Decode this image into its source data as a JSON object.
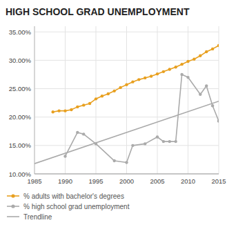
{
  "chart_data": {
    "type": "line",
    "title": "HIGH SCHOOL GRAD UNEMPLOYMENT",
    "series": [
      {
        "name": "% adults with bachelor's degrees",
        "color": "#e8a020",
        "marker": "circle",
        "x": [
          1988,
          1989,
          1990,
          1991,
          1992,
          1993,
          1994,
          1995,
          1996,
          1997,
          1998,
          1999,
          2000,
          2001,
          2002,
          2003,
          2004,
          2005,
          2006,
          2007,
          2008,
          2009,
          2010,
          2011,
          2012,
          2013,
          2014,
          2015
        ],
        "values": [
          0.209,
          0.211,
          0.211,
          0.213,
          0.218,
          0.221,
          0.224,
          0.232,
          0.237,
          0.241,
          0.246,
          0.252,
          0.257,
          0.262,
          0.266,
          0.269,
          0.272,
          0.276,
          0.28,
          0.284,
          0.288,
          0.293,
          0.298,
          0.302,
          0.308,
          0.315,
          0.32,
          0.326
        ]
      },
      {
        "name": "% high school grad unemployment",
        "color": "#aaaaaa",
        "marker": "circle",
        "x": [
          1990,
          1992,
          1993,
          1995,
          1998,
          2000,
          2001,
          2003,
          2005,
          2006,
          2007,
          2008,
          2009,
          2010,
          2012,
          2013,
          2014,
          2015
        ],
        "values": [
          0.131,
          0.173,
          0.17,
          0.153,
          0.123,
          0.12,
          0.15,
          0.153,
          0.165,
          0.157,
          0.157,
          0.157,
          0.275,
          0.27,
          0.24,
          0.255,
          0.22,
          0.193
        ]
      },
      {
        "name": "Trendline",
        "color": "#aaaaaa",
        "x": [
          1985,
          2015
        ],
        "values": [
          0.118,
          0.228
        ]
      }
    ],
    "xlim": [
      1985,
      2015
    ],
    "ylim": [
      0.1,
      0.36
    ],
    "xticks": [
      1985,
      1990,
      1995,
      2000,
      2005,
      2010,
      2015
    ],
    "yticks": [
      {
        "value": 0.1,
        "label": "10.00%"
      },
      {
        "value": 0.15,
        "label": "15.00%"
      },
      {
        "value": 0.2,
        "label": "20.00%"
      },
      {
        "value": 0.25,
        "label": "25.00%"
      },
      {
        "value": 0.3,
        "label": "30.00%"
      },
      {
        "value": 0.35,
        "label": "35.00%"
      }
    ],
    "grid": true,
    "legend": "bottom"
  }
}
